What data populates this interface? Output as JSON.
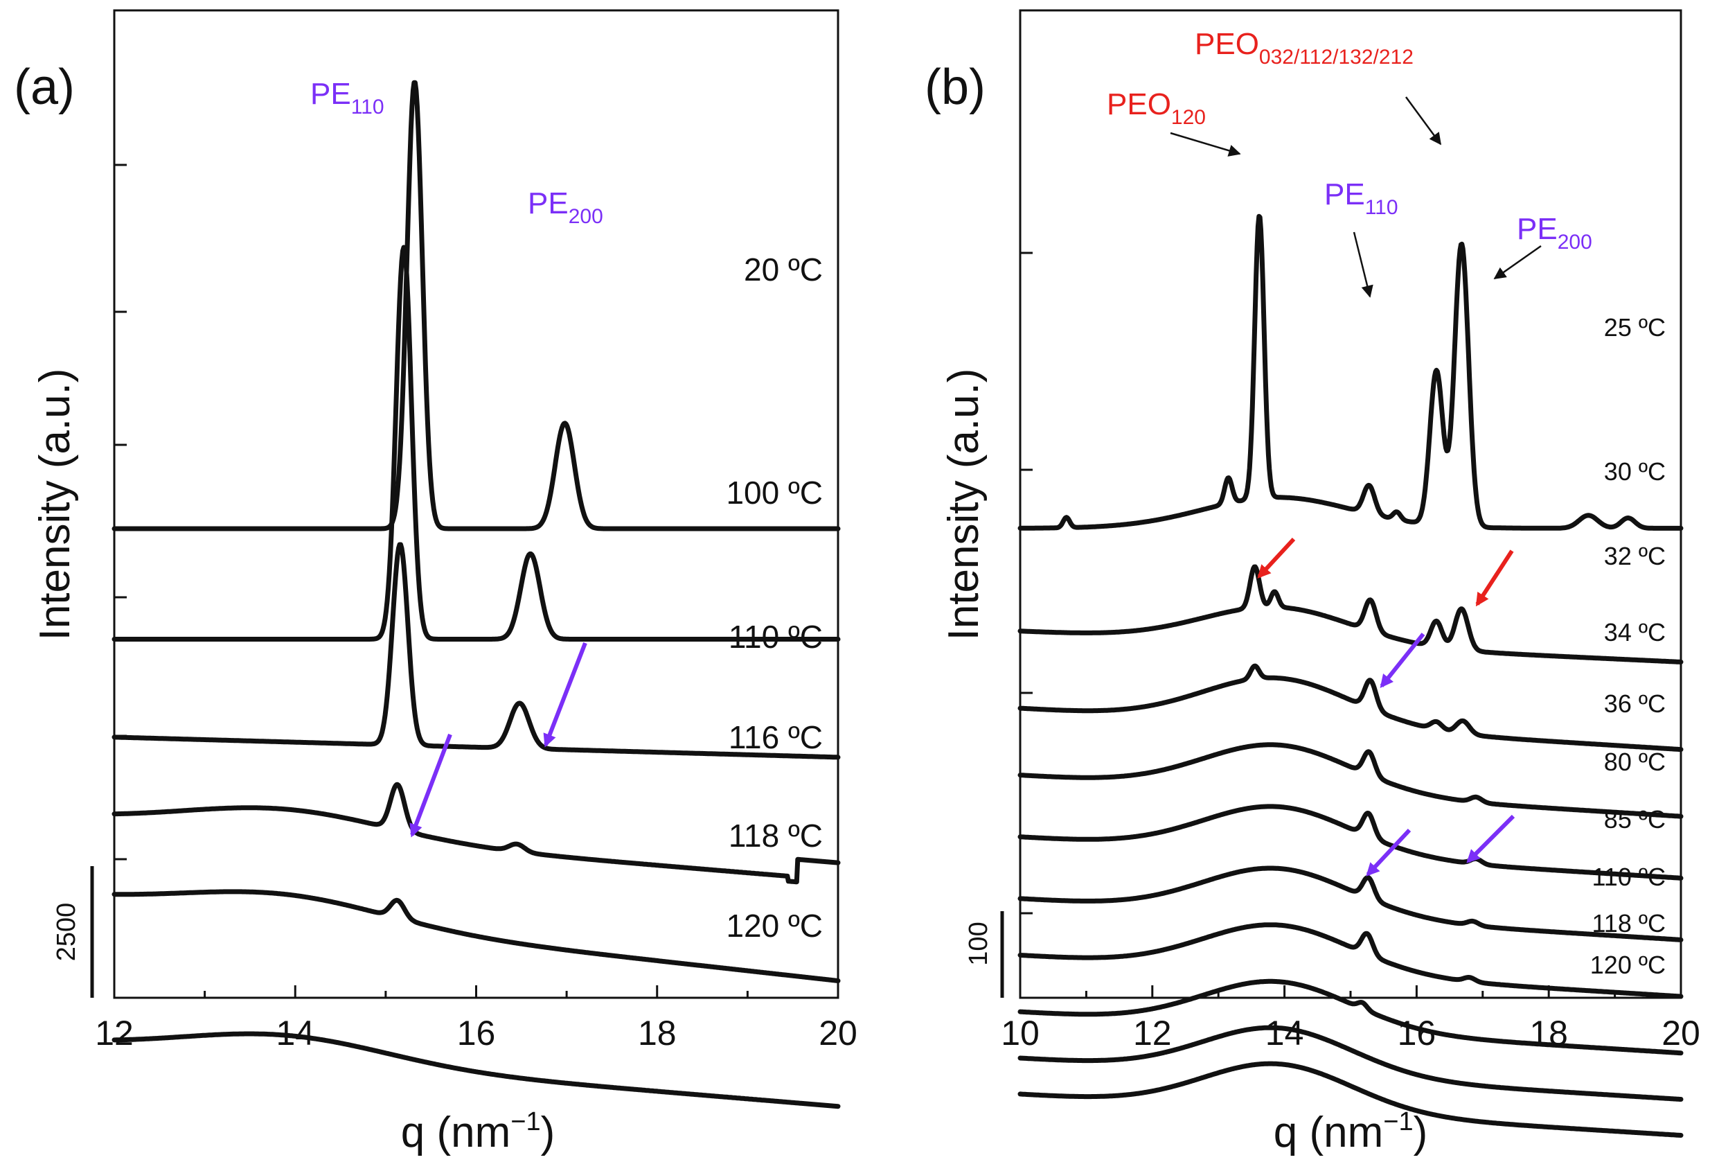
{
  "chart_data": [
    {
      "type": "line",
      "panel_label": "(a)",
      "xlabel": "q (nm",
      "xlabel_sup": "−1",
      "xlabel_close": ")",
      "ylabel": "Intensity (a.u.)",
      "xlim": [
        12,
        20
      ],
      "xticks": [
        "12",
        "14",
        "16",
        "18",
        "20"
      ],
      "scale_bar": "2500",
      "series": [
        {
          "name": "20 ºC",
          "baseline": 0.84,
          "slope": 0.0,
          "hump": 0.0,
          "peaks": [
            [
              15.32,
              0.12,
              0.89
            ],
            [
              16.98,
              0.15,
              0.21
            ]
          ],
          "step": 0
        },
        {
          "name": "100 ºC",
          "baseline": 0.62,
          "slope": 0.0,
          "hump": 0.0,
          "peaks": [
            [
              15.2,
              0.12,
              0.78
            ],
            [
              16.6,
              0.15,
              0.17
            ]
          ],
          "step": 0
        },
        {
          "name": "110 ºC",
          "baseline": 0.425,
          "slope": -0.04,
          "hump": 0.0,
          "peaks": [
            [
              15.16,
              0.12,
              0.4
            ],
            [
              16.48,
              0.15,
              0.09
            ]
          ],
          "step": 0
        },
        {
          "name": "116 ºC",
          "baseline": 0.26,
          "slope": -0.12,
          "hump": 0.05,
          "peaks": [
            [
              15.13,
              0.11,
              0.09
            ],
            [
              16.45,
              0.12,
              0.015
            ]
          ],
          "step": 1
        },
        {
          "name": "118 ºC",
          "baseline": 0.1,
          "slope": -0.16,
          "hump": 0.05,
          "peaks": [
            [
              15.13,
              0.11,
              0.035
            ]
          ],
          "step": 0
        },
        {
          "name": "120 ºC",
          "baseline": -0.19,
          "slope": -0.12,
          "hump": 0.05,
          "peaks": [],
          "step": 0
        }
      ],
      "annotations": [
        {
          "text": "PE",
          "sub": "110",
          "color": "#7b2ff7"
        },
        {
          "text": "PE",
          "sub": "200",
          "color": "#7b2ff7"
        }
      ]
    },
    {
      "type": "line",
      "panel_label": "(b)",
      "xlabel": "q (nm",
      "xlabel_sup": "−1",
      "xlabel_close": ")",
      "ylabel": "Intensity (a.u.)",
      "xlim": [
        10,
        20
      ],
      "xticks": [
        "10",
        "12",
        "14",
        "16",
        "18",
        "20"
      ],
      "scale_bar": "100",
      "series": [
        {
          "name": "25 ºC",
          "baseline": 0.65,
          "slope": 0.0,
          "hump": 0.06,
          "peaks": [
            [
              10.7,
              0.07,
              0.02
            ],
            [
              13.15,
              0.08,
              0.05
            ],
            [
              13.62,
              0.1,
              0.55
            ],
            [
              15.28,
              0.12,
              0.055
            ],
            [
              15.7,
              0.08,
              0.015
            ],
            [
              16.3,
              0.14,
              0.3
            ],
            [
              16.68,
              0.15,
              0.55
            ],
            [
              18.6,
              0.2,
              0.025
            ],
            [
              19.2,
              0.15,
              0.02
            ]
          ]
        },
        {
          "name": "30 ºC",
          "baseline": 0.45,
          "slope": -0.06,
          "hump": 0.07,
          "peaks": [
            [
              13.55,
              0.1,
              0.08
            ],
            [
              13.85,
              0.08,
              0.03
            ],
            [
              15.3,
              0.12,
              0.06
            ],
            [
              16.3,
              0.12,
              0.05
            ],
            [
              16.68,
              0.14,
              0.08
            ]
          ]
        },
        {
          "name": "32 ºC",
          "baseline": 0.3,
          "slope": -0.08,
          "hump": 0.09,
          "peaks": [
            [
              13.55,
              0.09,
              0.025
            ],
            [
              15.3,
              0.12,
              0.055
            ],
            [
              16.3,
              0.12,
              0.015
            ],
            [
              16.7,
              0.14,
              0.025
            ]
          ]
        },
        {
          "name": "34 ºC",
          "baseline": 0.17,
          "slope": -0.08,
          "hump": 0.09,
          "peaks": [
            [
              15.28,
              0.12,
              0.045
            ],
            [
              16.9,
              0.12,
              0.01
            ]
          ]
        },
        {
          "name": "36 ºC",
          "baseline": 0.05,
          "slope": -0.08,
          "hump": 0.09,
          "peaks": [
            [
              15.27,
              0.12,
              0.045
            ],
            [
              16.9,
              0.12,
              0.01
            ]
          ]
        },
        {
          "name": "80 ºC",
          "baseline": -0.07,
          "slope": -0.08,
          "hump": 0.09,
          "peaks": [
            [
              15.27,
              0.12,
              0.04
            ],
            [
              16.85,
              0.12,
              0.008
            ]
          ]
        },
        {
          "name": "85 ºC",
          "baseline": -0.18,
          "slope": -0.08,
          "hump": 0.09,
          "peaks": [
            [
              15.25,
              0.12,
              0.04
            ],
            [
              16.8,
              0.12,
              0.008
            ]
          ]
        },
        {
          "name": "110 ºC",
          "baseline": -0.29,
          "slope": -0.08,
          "hump": 0.09,
          "peaks": [
            [
              15.18,
              0.1,
              0.012
            ]
          ]
        },
        {
          "name": "118 ºC",
          "baseline": -0.38,
          "slope": -0.08,
          "hump": 0.09,
          "peaks": []
        },
        {
          "name": "120 ºC",
          "baseline": -0.45,
          "slope": -0.08,
          "hump": 0.09,
          "peaks": []
        }
      ],
      "annotations": [
        {
          "text": "PEO",
          "sub": "120",
          "color": "#e8211d"
        },
        {
          "text": "PEO",
          "sub": "032/112/132/212",
          "color": "#e8211d"
        },
        {
          "text": "PE",
          "sub": "110",
          "color": "#7b2ff7"
        },
        {
          "text": "PE",
          "sub": "200",
          "color": "#7b2ff7"
        }
      ]
    }
  ]
}
